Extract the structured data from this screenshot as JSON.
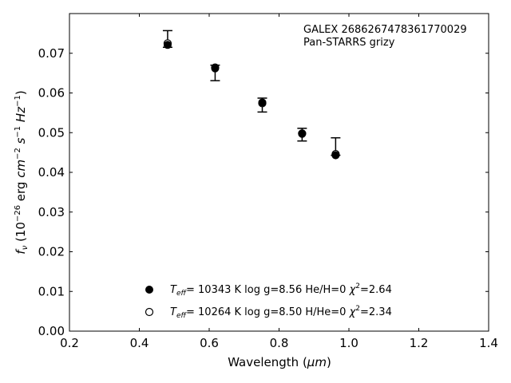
{
  "chart_data": {
    "type": "scatter",
    "xlabel_text": "Wavelength (",
    "xlabel_unit": "μm",
    "xlabel_close": ")",
    "ylabel_f": "f",
    "ylabel_nu": "ν",
    "ylabel_open": " (10",
    "ylabel_exp1": "−26",
    "ylabel_erg": " erg ",
    "ylabel_cm": "cm",
    "ylabel_exp2": "−2",
    "ylabel_s": " s",
    "ylabel_exp3": "−1",
    "ylabel_hz": " Hz",
    "ylabel_exp4": "−1",
    "ylabel_close": ")",
    "xlim": [
      0.2,
      1.4
    ],
    "ylim": [
      0.0,
      0.08
    ],
    "xticks": [
      0.2,
      0.4,
      0.6,
      0.8,
      1.0,
      1.2,
      1.4
    ],
    "xtick_labels": [
      "0.2",
      "0.4",
      "0.6",
      "0.8",
      "1.0",
      "1.2",
      "1.4"
    ],
    "yticks": [
      0.0,
      0.01,
      0.02,
      0.03,
      0.04,
      0.05,
      0.06,
      0.07
    ],
    "ytick_labels": [
      "0.00",
      "0.01",
      "0.02",
      "0.03",
      "0.04",
      "0.05",
      "0.06",
      "0.07"
    ],
    "annotation_line1": "GALEX 2686267478361770029",
    "annotation_line2": "Pan-STARRS grizy",
    "observed": {
      "x": [
        0.481,
        0.617,
        0.752,
        0.866,
        0.962
      ],
      "y": [
        0.0718,
        0.0663,
        0.057,
        0.0493,
        0.0445
      ],
      "yerr_low": [
        0.0715,
        0.0631,
        0.0552,
        0.0479,
        0.0443
      ],
      "yerr_high": [
        0.0757,
        0.067,
        0.0587,
        0.0511,
        0.0487
      ]
    },
    "series": [
      {
        "marker": "filled",
        "x": [
          0.481,
          0.617,
          0.752,
          0.866,
          0.962
        ],
        "y": [
          0.0721,
          0.0662,
          0.0576,
          0.0497,
          0.0443
        ],
        "legend_teff": "T",
        "legend_eff": "eff",
        "legend_rest": "= 10343 K  log g=8.56  He/H=0  ",
        "legend_chi": "χ",
        "legend_sup": "2",
        "legend_val": "=2.64"
      },
      {
        "marker": "open",
        "x": [
          0.481,
          0.617,
          0.752,
          0.866,
          0.962
        ],
        "y": [
          0.0725,
          0.0664,
          0.0574,
          0.0498,
          0.0446
        ],
        "legend_teff": "T",
        "legend_eff": "eff",
        "legend_rest": "= 10264 K  log g=8.50  H/He=0  ",
        "legend_chi": "χ",
        "legend_sup": "2",
        "legend_val": "=2.34"
      }
    ],
    "grid": false,
    "legend_position": "lower-center"
  }
}
